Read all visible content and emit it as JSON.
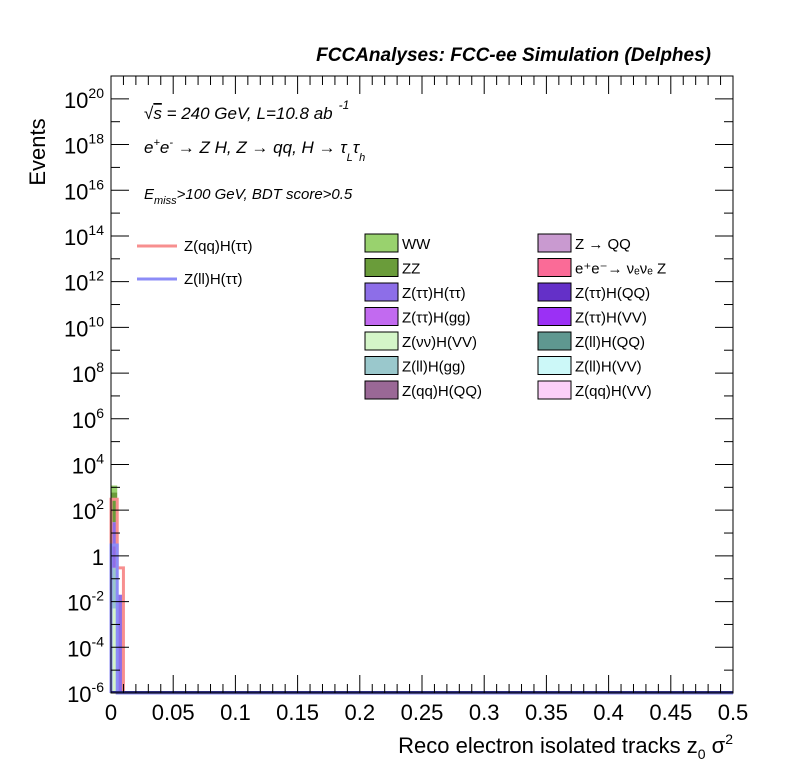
{
  "header": {
    "title": "FCCAnalyses: FCC-ee Simulation (Delphes)"
  },
  "annotations": {
    "line1": "√s = 240 GeV, L=10.8 ab",
    "line1_sup": "-1",
    "line2": "e⁺e⁻ → Z H, Z → qq, H → τ_L τ_h",
    "line3": "E_miss>100 GeV, BDT score>0.5"
  },
  "chart_data": {
    "type": "bar",
    "xlabel": "Reco electron isolated tracks z₀ σ²",
    "ylabel": "Events",
    "xlim": [
      0,
      0.5
    ],
    "ylim": [
      1e-06,
      1e+21
    ],
    "y_scale": "log",
    "x_ticks": [
      "0",
      "0.05",
      "0.1",
      "0.15",
      "0.2",
      "0.25",
      "0.3",
      "0.35",
      "0.4",
      "0.45",
      "0.5"
    ],
    "y_ticks": [
      {
        "value": 1e-06,
        "base": "10",
        "exp": "-6"
      },
      {
        "value": 0.0001,
        "base": "10",
        "exp": "-4"
      },
      {
        "value": 0.01,
        "base": "10",
        "exp": "-2"
      },
      {
        "value": 1,
        "base": "1",
        "exp": ""
      },
      {
        "value": 100.0,
        "base": "10",
        "exp": "2"
      },
      {
        "value": 10000.0,
        "base": "10",
        "exp": "4"
      },
      {
        "value": 1000000.0,
        "base": "10",
        "exp": "6"
      },
      {
        "value": 100000000.0,
        "base": "10",
        "exp": "8"
      },
      {
        "value": 10000000000.0,
        "base": "10",
        "exp": "10"
      },
      {
        "value": 1000000000000.0,
        "base": "10",
        "exp": "12"
      },
      {
        "value": 100000000000000.0,
        "base": "10",
        "exp": "14"
      },
      {
        "value": 1e+16,
        "base": "10",
        "exp": "16"
      },
      {
        "value": 1e+18,
        "base": "10",
        "exp": "18"
      },
      {
        "value": 1e+20,
        "base": "10",
        "exp": "20"
      }
    ],
    "bin_width": 0.005,
    "stacked_bars": [
      {
        "x": 0.0,
        "segments": [
          {
            "name": "Z(νν)H(VV)",
            "y0": 1e-06,
            "y1": 0.005,
            "color": "#d4f5c8"
          },
          {
            "name": "Z(ll)H(gg)",
            "y0": 0.005,
            "y1": 0.3,
            "color": "#9ac8cc"
          },
          {
            "name": "Z(ττ)H(ττ)",
            "y0": 0.3,
            "y1": 30,
            "color": "#8d6ee8"
          },
          {
            "name": "ZZ",
            "y0": 30,
            "y1": 600,
            "color": "#6a9c3a"
          },
          {
            "name": "WW",
            "y0": 600,
            "y1": 1200,
            "color": "#99d26e"
          }
        ]
      },
      {
        "x": 0.005,
        "segments": [
          {
            "name": "Z(ττ)H(ττ)",
            "y0": 1e-06,
            "y1": 0.02,
            "color": "#8d6ee8"
          }
        ]
      }
    ],
    "lines": [
      {
        "name": "Z(qq)H(ττ)",
        "color": "#f78f8f",
        "steps": [
          {
            "x0": 0.0,
            "x1": 0.005,
            "y": 300
          },
          {
            "x0": 0.005,
            "x1": 0.01,
            "y": 0.3
          },
          {
            "x0": 0.01,
            "x1": 0.5,
            "y": 1e-06
          }
        ]
      },
      {
        "name": "Z(ll)H(ττ)",
        "color": "#8c8cf7",
        "steps": [
          {
            "x0": 0.0,
            "x1": 0.005,
            "y": 3
          },
          {
            "x0": 0.005,
            "x1": 0.01,
            "y": 1e-06
          },
          {
            "x0": 0.01,
            "x1": 0.5,
            "y": 1e-06
          }
        ]
      }
    ],
    "legend_lines": [
      {
        "label": "Z(qq)H(ττ)",
        "color": "#f78f8f"
      },
      {
        "label": "Z(ll)H(ττ)",
        "color": "#8c8cf7"
      }
    ],
    "legend_fills": [
      {
        "label": "WW",
        "color": "#99d26e"
      },
      {
        "label": "Z → QQ",
        "color": "#c99ad0"
      },
      {
        "label": "ZZ",
        "color": "#6a9c3a"
      },
      {
        "label": "e⁺e⁻→ νₑνₑ Z",
        "color": "#fa6b97"
      },
      {
        "label": "Z(ττ)H(ττ)",
        "color": "#8d6ee8"
      },
      {
        "label": "Z(ττ)H(QQ)",
        "color": "#6430c8"
      },
      {
        "label": "Z(ττ)H(gg)",
        "color": "#c26af0"
      },
      {
        "label": "Z(ττ)H(VV)",
        "color": "#9b30f5"
      },
      {
        "label": "Z(νν)H(VV)",
        "color": "#d4f5c8"
      },
      {
        "label": "Z(ll)H(QQ)",
        "color": "#5f9890"
      },
      {
        "label": "Z(ll)H(gg)",
        "color": "#9ac8cc"
      },
      {
        "label": "Z(ll)H(VV)",
        "color": "#ccf8f8"
      },
      {
        "label": "Z(qq)H(QQ)",
        "color": "#9a6896"
      },
      {
        "label": "Z(qq)H(VV)",
        "color": "#fbd0f8"
      }
    ],
    "baseline_color": "#2a2a7a"
  }
}
